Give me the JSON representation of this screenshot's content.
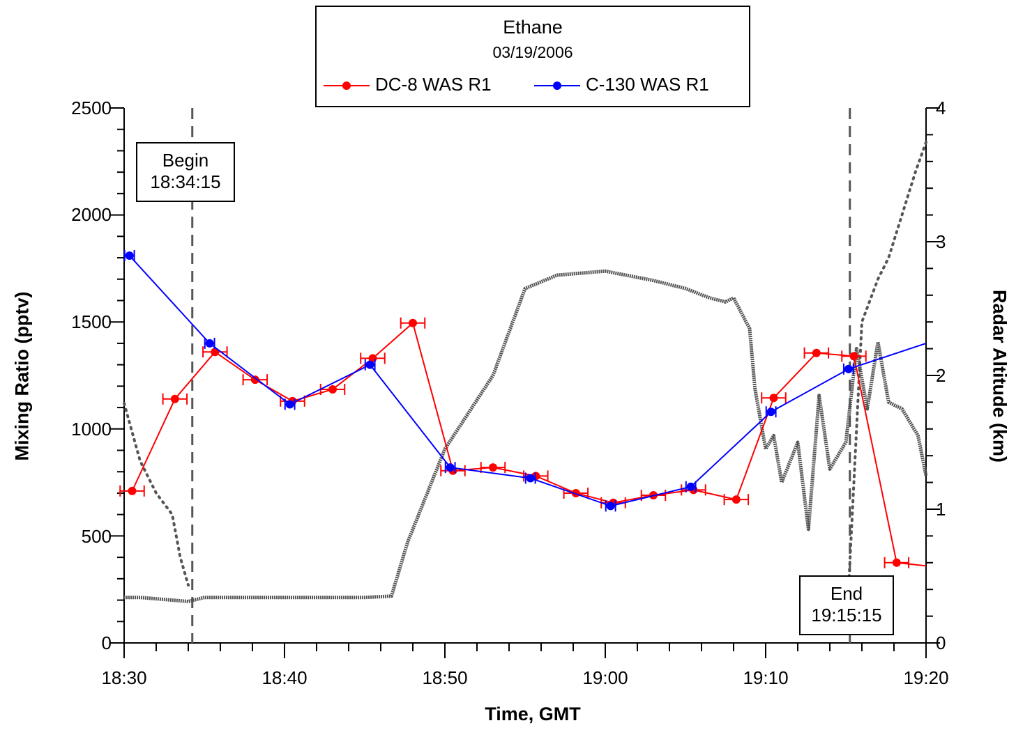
{
  "chart_data": {
    "type": "line",
    "title": "Ethane",
    "subtitle": "03/19/2006",
    "xlabel": "Time, GMT",
    "ylabel": "Mixing Ratio (pptv)",
    "y2label": "Radar Altitude  (km)",
    "xlim": [
      "18:30",
      "19:20"
    ],
    "ylim": [
      0,
      2500
    ],
    "y2lim": [
      0,
      4
    ],
    "x_ticks": [
      "18:30",
      "18:40",
      "18:50",
      "19:00",
      "19:10",
      "19:20"
    ],
    "y_ticks": [
      "0",
      "500",
      "1000",
      "1500",
      "2000",
      "2500"
    ],
    "y2_ticks": [
      "0",
      "1",
      "2",
      "3",
      "4"
    ],
    "legend_position": "top-center",
    "series": [
      {
        "name": "DC-8 WAS R1",
        "color": "#ff0000",
        "x": [
          "18:30:30",
          "18:33:10",
          "18:35:40",
          "18:38:10",
          "18:40:30",
          "18:43:00",
          "18:45:30",
          "18:48:00",
          "18:50:30",
          "18:53:00",
          "18:55:40",
          "18:58:10",
          "19:00:30",
          "19:03:00",
          "19:05:30",
          "19:08:10",
          "19:10:30",
          "19:13:10",
          "19:15:30",
          "19:18:10",
          "19:20:00"
        ],
        "values": [
          710,
          1140,
          1360,
          1230,
          1130,
          1185,
          1330,
          1495,
          805,
          820,
          780,
          700,
          655,
          690,
          715,
          670,
          1145,
          1355,
          1340,
          375,
          360
        ],
        "x_error_minutes": 0.75
      },
      {
        "name": "C-130 WAS R1",
        "color": "#0000ff",
        "x": [
          "18:30:20",
          "18:35:20",
          "18:40:20",
          "18:45:20",
          "18:50:20",
          "18:55:20",
          "19:00:20",
          "19:05:20",
          "19:10:20",
          "19:15:10",
          "19:20:00"
        ],
        "values": [
          1810,
          1400,
          1115,
          1300,
          820,
          770,
          640,
          730,
          1080,
          1280,
          1400
        ],
        "x_error_minutes": 0.3
      }
    ],
    "altitude_trace": {
      "axis": "y2",
      "color": "#555555",
      "style": "dotted",
      "x": [
        "18:30:00",
        "18:31:00",
        "18:32:00",
        "18:33:00",
        "18:34:00",
        "18:35:00",
        "18:40:00",
        "18:45:00",
        "18:46:40",
        "18:47:40",
        "18:50:00",
        "18:53:00",
        "18:55:00",
        "18:57:00",
        "19:00:00",
        "19:03:00",
        "19:05:00",
        "19:06:30",
        "19:07:30",
        "19:08:00",
        "19:09:00",
        "19:09:20",
        "19:10:00",
        "19:10:30",
        "19:11:00",
        "19:12:00",
        "19:12:40",
        "19:13:20",
        "19:14:00",
        "19:15:00",
        "19:15:40",
        "19:16:20",
        "19:17:00",
        "19:17:40",
        "19:18:30",
        "19:19:30",
        "19:20:00"
      ],
      "values": [
        0.34,
        0.34,
        0.33,
        0.32,
        0.31,
        0.34,
        0.34,
        0.34,
        0.35,
        0.75,
        1.45,
        2.0,
        2.65,
        2.75,
        2.78,
        2.71,
        2.65,
        2.58,
        2.55,
        2.58,
        2.35,
        1.9,
        1.45,
        1.55,
        1.2,
        1.5,
        0.85,
        1.85,
        1.3,
        1.5,
        2.2,
        1.75,
        2.25,
        1.8,
        1.75,
        1.55,
        1.25
      ]
    },
    "altitude_trace_secondary": {
      "axis": "y",
      "color": "#555555",
      "style": "sparse-dotted",
      "x": [
        "18:30:00",
        "18:31:00",
        "18:32:00",
        "18:33:00",
        "18:33:30",
        "18:34:00",
        "19:15:10",
        "19:16:00",
        "19:17:00",
        "19:17:40",
        "19:18:30",
        "19:19:20",
        "19:20:00"
      ],
      "values": [
        1120,
        850,
        700,
        600,
        400,
        270,
        250,
        1500,
        1700,
        1800,
        2000,
        2200,
        2340
      ]
    },
    "markers": [
      {
        "label": "Begin",
        "time": "18:34:15",
        "x": "18:34:15"
      },
      {
        "label": "End",
        "time": "19:15:15",
        "x": "19:15:15"
      }
    ]
  }
}
